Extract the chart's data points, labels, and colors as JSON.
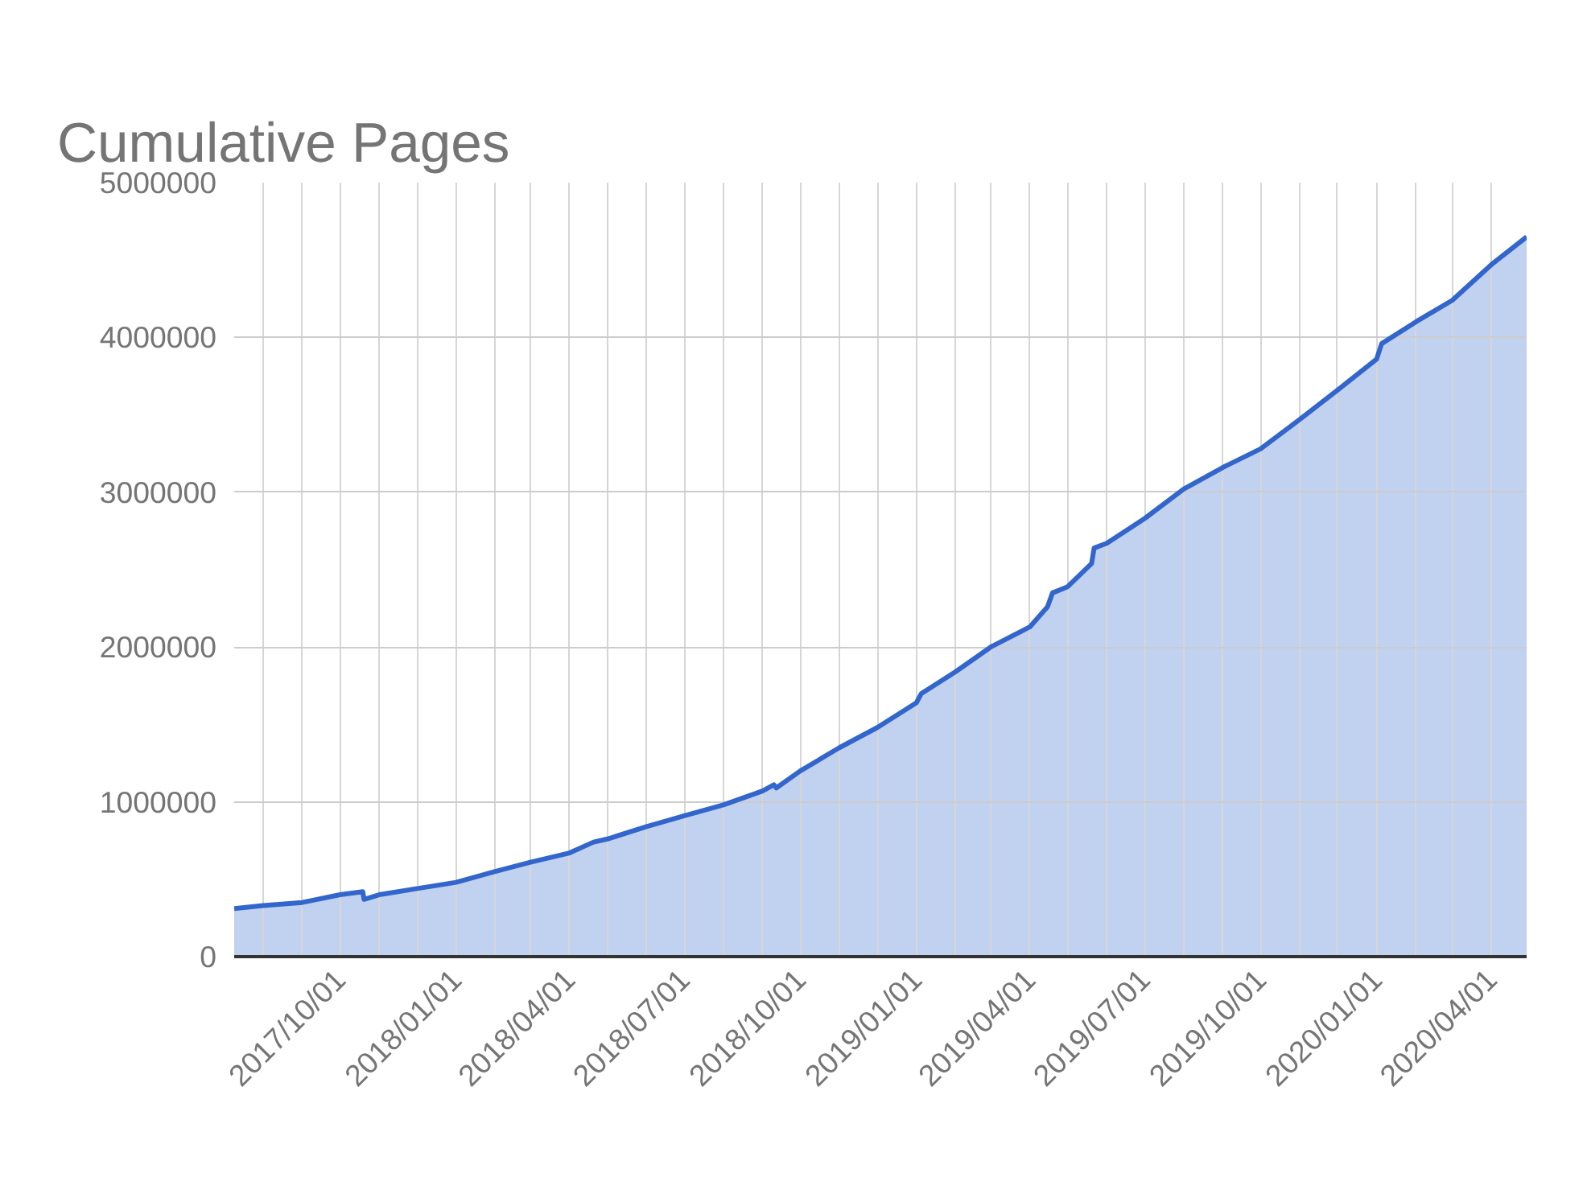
{
  "chart_data": {
    "type": "area",
    "title": "Cumulative Pages",
    "x": [
      "2017-07-09",
      "2017-08-01",
      "2017-09-01",
      "2017-10-01",
      "2017-10-19",
      "2017-10-20",
      "2017-11-01",
      "2017-12-01",
      "2018-01-01",
      "2018-02-01",
      "2018-03-01",
      "2018-04-01",
      "2018-04-20",
      "2018-05-01",
      "2018-06-01",
      "2018-07-01",
      "2018-08-01",
      "2018-09-01",
      "2018-09-10",
      "2018-09-12",
      "2018-10-01",
      "2018-11-01",
      "2018-12-01",
      "2019-01-01",
      "2019-01-05",
      "2019-02-01",
      "2019-03-01",
      "2019-04-01",
      "2019-04-15",
      "2019-04-19",
      "2019-05-01",
      "2019-05-20",
      "2019-05-22",
      "2019-06-01",
      "2019-07-01",
      "2019-08-01",
      "2019-09-01",
      "2019-10-01",
      "2019-11-01",
      "2019-12-01",
      "2020-01-01",
      "2020-01-05",
      "2020-02-01",
      "2020-03-01",
      "2020-04-01",
      "2020-04-29"
    ],
    "series": [
      {
        "color": "#3366cc",
        "values": [
          310000,
          330000,
          350000,
          400000,
          420000,
          370000,
          400000,
          440000,
          480000,
          550000,
          610000,
          670000,
          740000,
          760000,
          840000,
          910000,
          980000,
          1070000,
          1110000,
          1090000,
          1200000,
          1350000,
          1480000,
          1640000,
          1700000,
          1840000,
          2000000,
          2130000,
          2260000,
          2350000,
          2390000,
          2540000,
          2640000,
          2670000,
          2830000,
          3020000,
          3160000,
          3280000,
          3470000,
          3660000,
          3860000,
          3960000,
          4100000,
          4240000,
          4470000,
          4650000
        ]
      }
    ],
    "xlim": [
      "2017-07-09",
      "2020-04-29"
    ],
    "xticks": [
      {
        "value": "2017-08-01",
        "label": null
      },
      {
        "value": "2017-09-01",
        "label": null
      },
      {
        "value": "2017-10-01",
        "label": "2017/10/01"
      },
      {
        "value": "2017-11-01",
        "label": null
      },
      {
        "value": "2017-12-01",
        "label": null
      },
      {
        "value": "2018-01-01",
        "label": "2018/01/01"
      },
      {
        "value": "2018-02-01",
        "label": null
      },
      {
        "value": "2018-03-01",
        "label": null
      },
      {
        "value": "2018-04-01",
        "label": "2018/04/01"
      },
      {
        "value": "2018-05-01",
        "label": null
      },
      {
        "value": "2018-06-01",
        "label": null
      },
      {
        "value": "2018-07-01",
        "label": "2018/07/01"
      },
      {
        "value": "2018-08-01",
        "label": null
      },
      {
        "value": "2018-09-01",
        "label": null
      },
      {
        "value": "2018-10-01",
        "label": "2018/10/01"
      },
      {
        "value": "2018-11-01",
        "label": null
      },
      {
        "value": "2018-12-01",
        "label": null
      },
      {
        "value": "2019-01-01",
        "label": "2019/01/01"
      },
      {
        "value": "2019-02-01",
        "label": null
      },
      {
        "value": "2019-03-01",
        "label": null
      },
      {
        "value": "2019-04-01",
        "label": "2019/04/01"
      },
      {
        "value": "2019-05-01",
        "label": null
      },
      {
        "value": "2019-06-01",
        "label": null
      },
      {
        "value": "2019-07-01",
        "label": "2019/07/01"
      },
      {
        "value": "2019-08-01",
        "label": null
      },
      {
        "value": "2019-09-01",
        "label": null
      },
      {
        "value": "2019-10-01",
        "label": "2019/10/01"
      },
      {
        "value": "2019-11-01",
        "label": null
      },
      {
        "value": "2019-12-01",
        "label": null
      },
      {
        "value": "2020-01-01",
        "label": "2020/01/01"
      },
      {
        "value": "2020-02-01",
        "label": null
      },
      {
        "value": "2020-03-01",
        "label": null
      },
      {
        "value": "2020-04-01",
        "label": "2020/04/01"
      }
    ],
    "ylim": [
      0,
      5000000
    ],
    "yticks": [
      0,
      1000000,
      2000000,
      3000000,
      4000000,
      5000000
    ],
    "grid": true
  }
}
